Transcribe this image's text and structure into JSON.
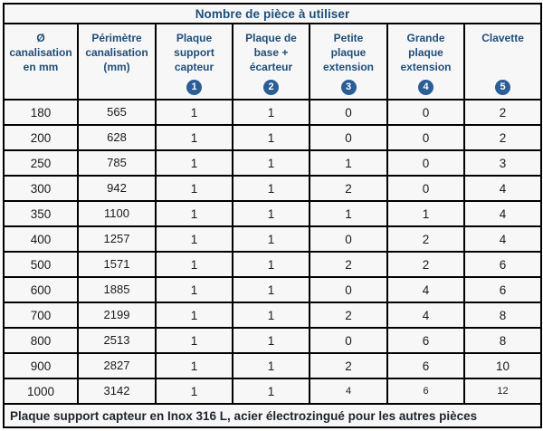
{
  "title": "Nombre de pièce à utiliser",
  "columns": [
    {
      "lines": [
        "Ø",
        "canalisation",
        "en mm"
      ],
      "badge": ""
    },
    {
      "lines": [
        "Périmètre",
        "canalisation",
        "(mm)"
      ],
      "badge": ""
    },
    {
      "lines": [
        "Plaque",
        "support",
        "capteur"
      ],
      "badge": "1"
    },
    {
      "lines": [
        "Plaque de",
        "base +",
        "écarteur"
      ],
      "badge": "2"
    },
    {
      "lines": [
        "Petite",
        "plaque",
        "extension"
      ],
      "badge": "3"
    },
    {
      "lines": [
        "Grande",
        "plaque",
        "extension"
      ],
      "badge": "4"
    },
    {
      "lines": [
        "Clavette"
      ],
      "badge": "5"
    }
  ],
  "rows": [
    [
      "180",
      "565",
      "1",
      "1",
      "0",
      "0",
      "2"
    ],
    [
      "200",
      "628",
      "1",
      "1",
      "0",
      "0",
      "2"
    ],
    [
      "250",
      "785",
      "1",
      "1",
      "1",
      "0",
      "3"
    ],
    [
      "300",
      "942",
      "1",
      "1",
      "2",
      "0",
      "4"
    ],
    [
      "350",
      "1100",
      "1",
      "1",
      "1",
      "1",
      "4"
    ],
    [
      "400",
      "1257",
      "1",
      "1",
      "0",
      "2",
      "4"
    ],
    [
      "500",
      "1571",
      "1",
      "1",
      "2",
      "2",
      "6"
    ],
    [
      "600",
      "1885",
      "1",
      "1",
      "0",
      "4",
      "6"
    ],
    [
      "700",
      "2199",
      "1",
      "1",
      "2",
      "4",
      "8"
    ],
    [
      "800",
      "2513",
      "1",
      "1",
      "0",
      "6",
      "8"
    ],
    [
      "900",
      "2827",
      "1",
      "1",
      "2",
      "6",
      "10"
    ],
    [
      "1000",
      "3142",
      "1",
      "1",
      "4",
      "6",
      "12"
    ]
  ],
  "footnote": "Plaque support capteur en Inox 316 L, acier électrozingué pour les autres pièces",
  "colors": {
    "header_text": "#1F4E79",
    "badge_fill": "#2B5D97",
    "badge_number": "#FFFFFF",
    "cell_background": "#F7F7F7",
    "grid_border": "#000000",
    "data_text": "#1A1A1A",
    "footnote_text": "#20242E"
  },
  "display": {
    "small_value_cells": {
      "row_index": 11,
      "col_indexes": [
        4,
        5,
        6
      ]
    }
  }
}
